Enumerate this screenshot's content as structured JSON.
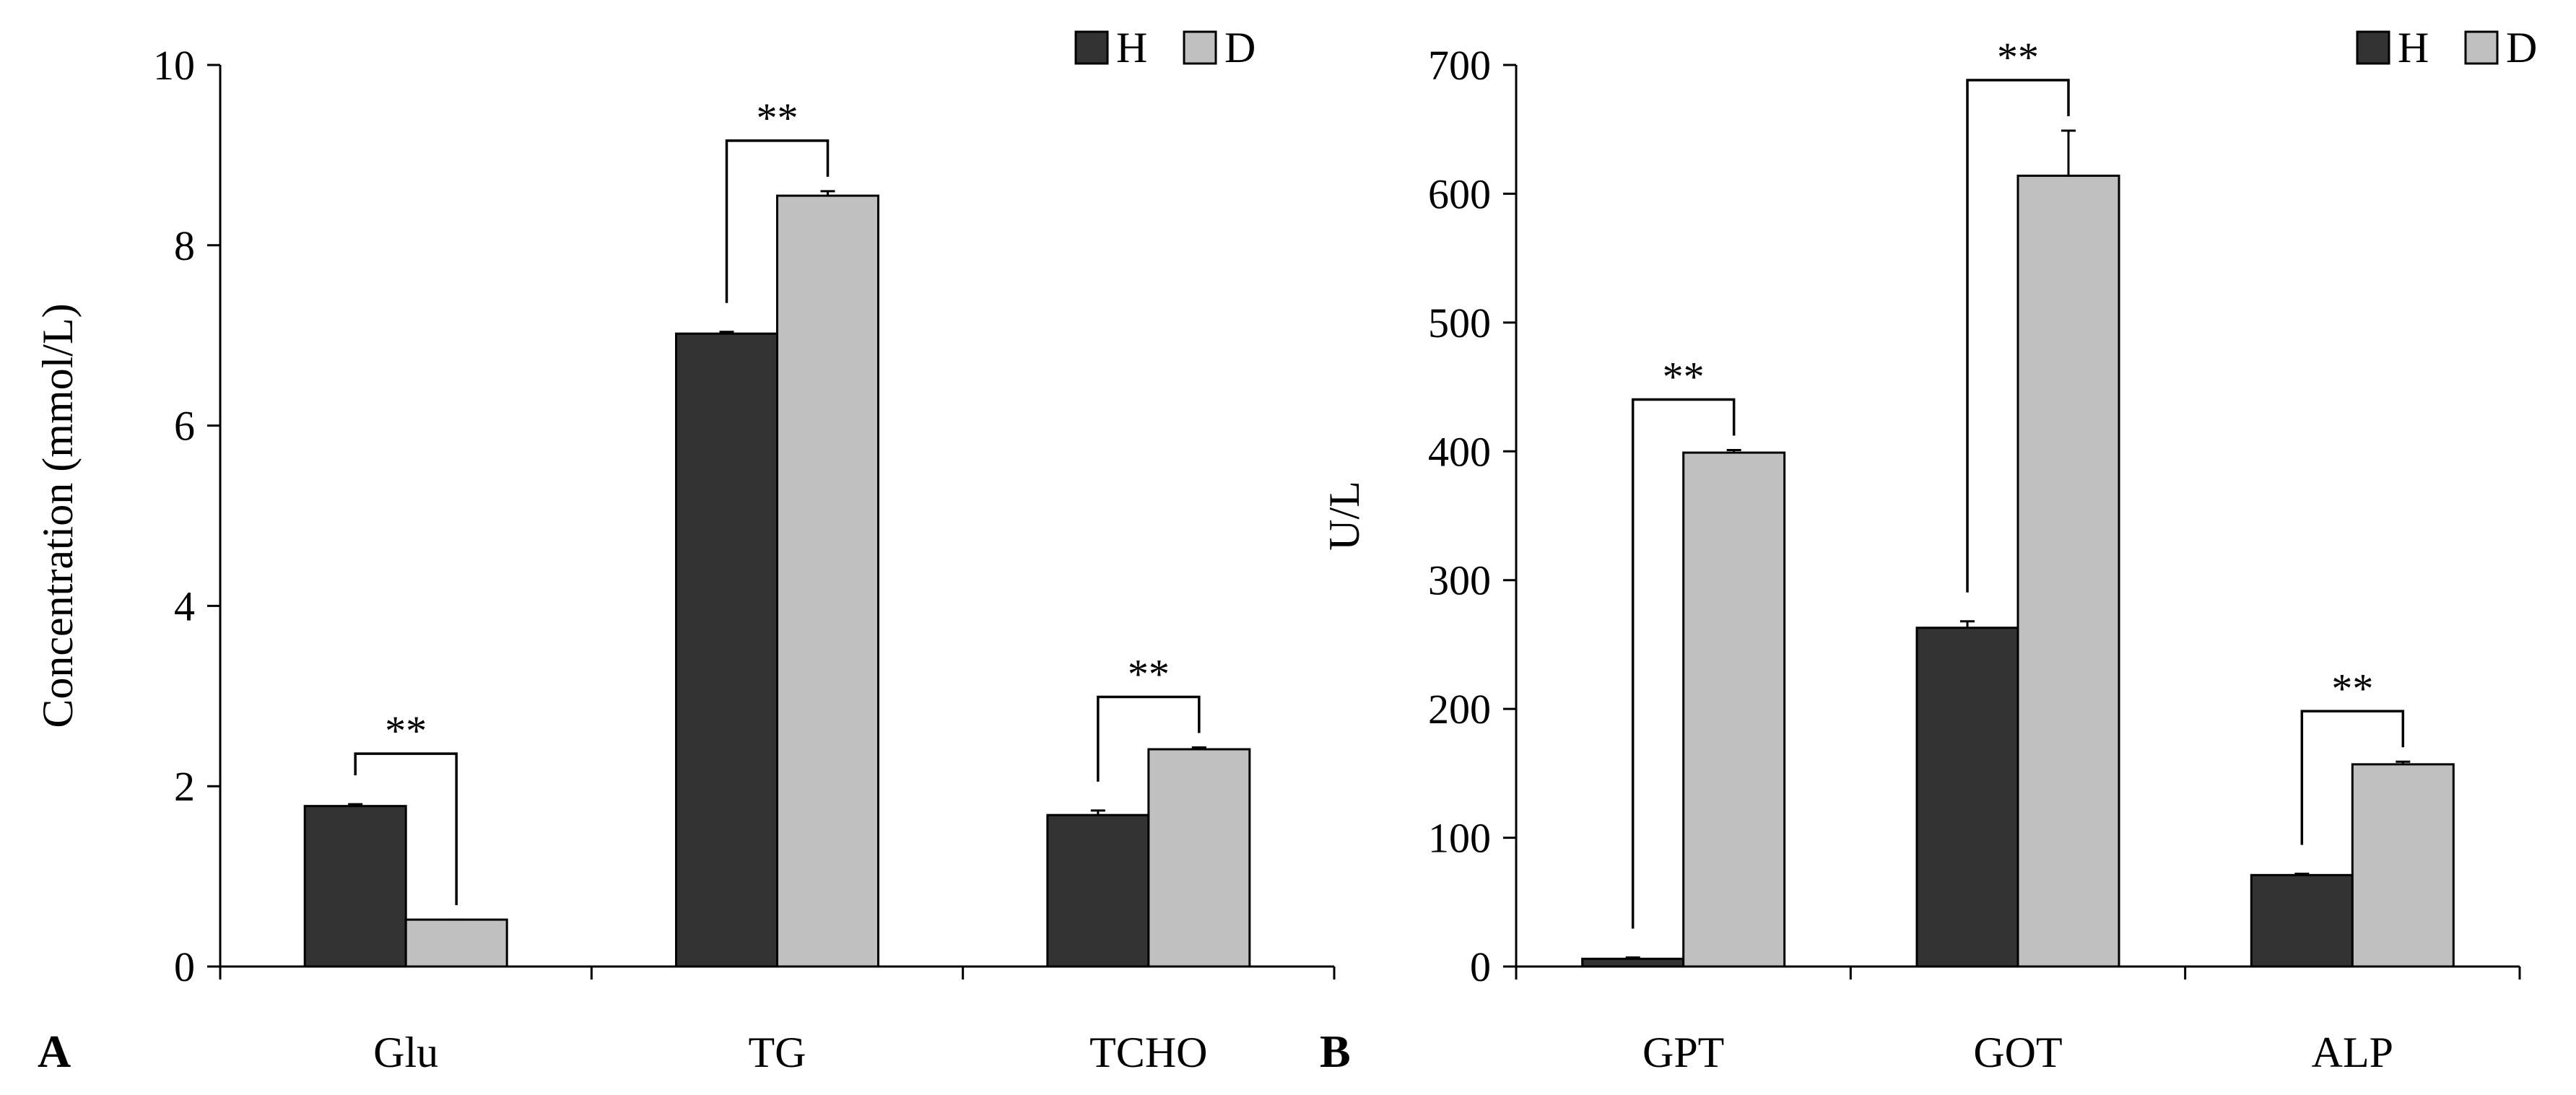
{
  "colors": {
    "H": "#333333",
    "D": "#c0c0c0",
    "axis": "#000000"
  },
  "legend": [
    "H",
    "D"
  ],
  "chart_data": [
    {
      "type": "bar",
      "panel_label": "A",
      "title": "",
      "xlabel": "",
      "ylabel": "Concentration (mmol/L)",
      "ylim": [
        0,
        10
      ],
      "yticks": [
        0,
        2,
        4,
        6,
        8,
        10
      ],
      "categories": [
        "Glu",
        "TG",
        "TCHO"
      ],
      "series": [
        {
          "name": "H",
          "values": [
            1.78,
            7.02,
            1.68
          ],
          "errors": [
            0.02,
            0.02,
            0.05
          ]
        },
        {
          "name": "D",
          "values": [
            0.52,
            8.55,
            2.41
          ],
          "errors": [
            0.0,
            0.05,
            0.02
          ]
        }
      ],
      "significance": [
        {
          "category": "Glu",
          "label": "**"
        },
        {
          "category": "TG",
          "label": "**"
        },
        {
          "category": "TCHO",
          "label": "**"
        }
      ],
      "legend_position": "top-right",
      "grid": false
    },
    {
      "type": "bar",
      "panel_label": "B",
      "title": "",
      "xlabel": "",
      "ylabel": "U/L",
      "ylim": [
        0,
        700
      ],
      "yticks": [
        0,
        100,
        200,
        300,
        400,
        500,
        600,
        700
      ],
      "categories": [
        "GPT",
        "GOT",
        "ALP"
      ],
      "series": [
        {
          "name": "H",
          "values": [
            6,
            263,
            71
          ],
          "errors": [
            1,
            5,
            1
          ]
        },
        {
          "name": "D",
          "values": [
            399,
            614,
            157
          ],
          "errors": [
            2,
            35,
            2
          ]
        }
      ],
      "significance": [
        {
          "category": "GPT",
          "label": "**"
        },
        {
          "category": "GOT",
          "label": "**"
        },
        {
          "category": "ALP",
          "label": "**"
        }
      ],
      "legend_position": "top-right",
      "grid": false
    }
  ]
}
